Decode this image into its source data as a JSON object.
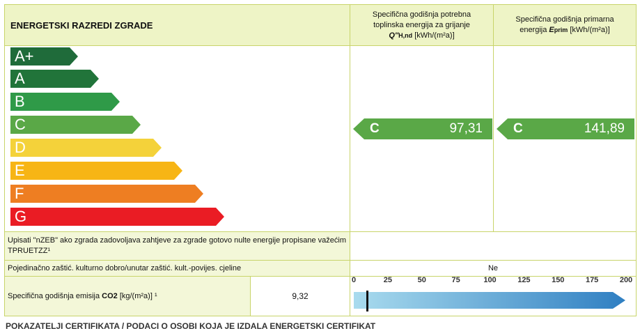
{
  "header": {
    "title": "ENERGETSKI RAZREDI ZGRADE",
    "col1": {
      "line1": "Specifična godišnja potrebna",
      "line2": "toplinska energija za grijanje",
      "symbol": "Q''",
      "sub": "H,nd",
      "unit": "[kWh/(m²a)]"
    },
    "col2": {
      "line1": "Specifična godišnja primarna",
      "line2": "energija",
      "symbol": "E",
      "sub": "prim",
      "unit": "[kWh/(m²a)]"
    }
  },
  "classes": [
    {
      "label": "A+",
      "color": "#1f6b3a"
    },
    {
      "label": "A",
      "color": "#21743a"
    },
    {
      "label": "B",
      "color": "#2f9a48"
    },
    {
      "label": "C",
      "color": "#5aa847"
    },
    {
      "label": "D",
      "color": "#f4d23a"
    },
    {
      "label": "E",
      "color": "#f7b515"
    },
    {
      "label": "F",
      "color": "#ee7e22"
    },
    {
      "label": "G",
      "color": "#ea1c24"
    }
  ],
  "indicators": {
    "heating": {
      "class": "C",
      "value": "97,31"
    },
    "primary": {
      "class": "C",
      "value": "141,89"
    }
  },
  "nzeb_label": "Upisati \"nZEB\" ako zgrada zadovoljava zahtjeve za zgrade gotovo nulte energije propisane važećim TPRUETZZ¹",
  "heritage": {
    "label": "Pojedinačno zaštić. kulturno dobro/unutar zaštić. kult.-povijes. cjeline",
    "value": "Ne"
  },
  "emission": {
    "label_pre": "Specifična godišnja emisija",
    "co2": "CO2",
    "unit": "[kg/(m²a)] ¹",
    "value": "9,32",
    "marker_value": 9.32
  },
  "scale": {
    "ticks": [
      "0",
      "25",
      "50",
      "75",
      "100",
      "125",
      "150",
      "175",
      "200"
    ],
    "min": 0,
    "max": 200
  },
  "footer": "POKAZATELJI CERTIFIKATA / PODACI O OSOBI KOJA JE IZDALA ENERGETSKI CERTIFIKAT"
}
